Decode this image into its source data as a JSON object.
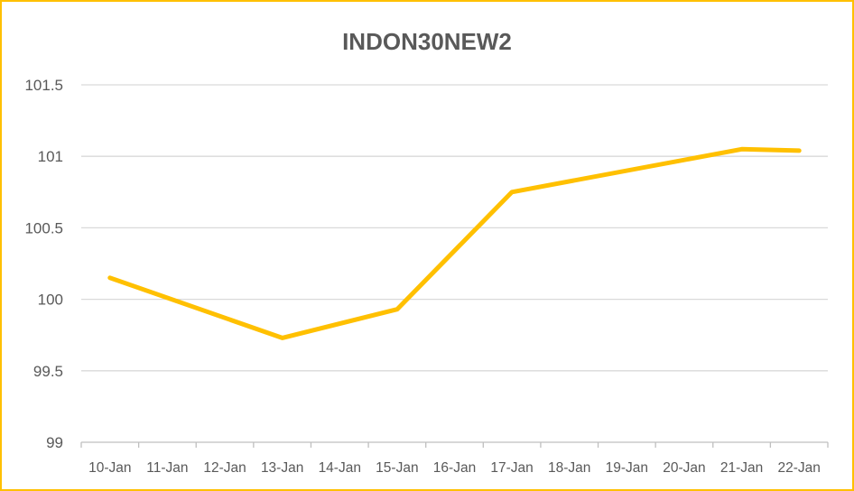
{
  "chart_data": {
    "type": "line",
    "title": "INDON30NEW2",
    "xlabel": "",
    "ylabel": "",
    "categories": [
      "10-Jan",
      "11-Jan",
      "12-Jan",
      "13-Jan",
      "14-Jan",
      "15-Jan",
      "16-Jan",
      "17-Jan",
      "18-Jan",
      "19-Jan",
      "20-Jan",
      "21-Jan",
      "22-Jan"
    ],
    "series": [
      {
        "x": [
          "10-Jan",
          "13-Jan",
          "15-Jan",
          "17-Jan",
          "21-Jan",
          "22-Jan"
        ],
        "values": [
          100.15,
          99.73,
          99.93,
          100.75,
          101.05,
          101.04
        ],
        "color": "#FFC000"
      }
    ],
    "ylim": [
      99,
      101.5
    ],
    "yticks": [
      "99",
      "99.5",
      "100",
      "100.5",
      "101",
      "101.5"
    ],
    "grid": true,
    "legend": "none"
  }
}
